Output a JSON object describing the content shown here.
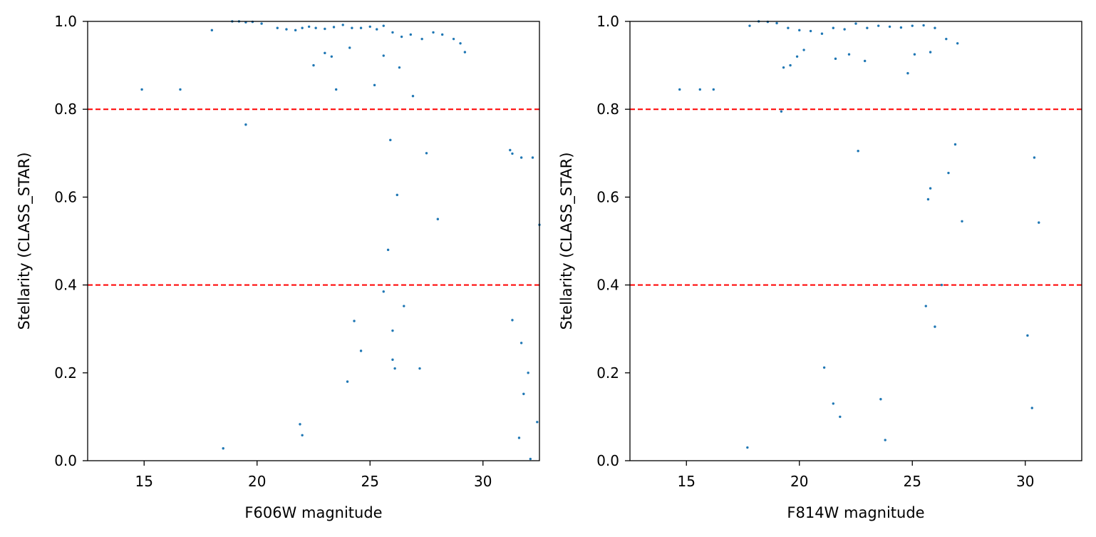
{
  "chart_data": [
    {
      "type": "scatter",
      "xlabel": "F606W magnitude",
      "ylabel": "Stellarity (CLASS_STAR)",
      "xlim": [
        12.5,
        32.5
      ],
      "ylim": [
        0.0,
        1.0
      ],
      "xticks": [
        15,
        20,
        25,
        30
      ],
      "yticks": [
        0.0,
        0.2,
        0.4,
        0.6,
        0.8,
        1.0
      ],
      "xtick_labels": [
        "15",
        "20",
        "25",
        "30"
      ],
      "ytick_labels": [
        "0.0",
        "0.2",
        "0.4",
        "0.6",
        "0.8",
        "1.0"
      ],
      "grid": false,
      "marker_color": "#1f77b4",
      "reference_lines": [
        {
          "orientation": "horizontal",
          "y": 0.8,
          "color": "#ff0000",
          "style": "dashed"
        },
        {
          "orientation": "horizontal",
          "y": 0.4,
          "color": "#ff0000",
          "style": "dashed"
        }
      ],
      "points": [
        [
          14.9,
          0.845
        ],
        [
          16.6,
          0.845
        ],
        [
          18.0,
          0.98
        ],
        [
          18.5,
          0.028
        ],
        [
          19.5,
          0.765
        ],
        [
          18.9,
          1.0
        ],
        [
          19.2,
          1.0
        ],
        [
          19.5,
          0.998
        ],
        [
          19.8,
          0.999
        ],
        [
          20.2,
          0.995
        ],
        [
          20.9,
          0.985
        ],
        [
          21.3,
          0.982
        ],
        [
          21.7,
          0.98
        ],
        [
          22.0,
          0.985
        ],
        [
          22.3,
          0.988
        ],
        [
          22.6,
          0.985
        ],
        [
          23.0,
          0.983
        ],
        [
          23.4,
          0.987
        ],
        [
          23.8,
          0.992
        ],
        [
          24.2,
          0.985
        ],
        [
          24.6,
          0.985
        ],
        [
          25.0,
          0.988
        ],
        [
          25.3,
          0.982
        ],
        [
          25.6,
          0.99
        ],
        [
          26.0,
          0.975
        ],
        [
          26.4,
          0.965
        ],
        [
          26.8,
          0.97
        ],
        [
          27.3,
          0.96
        ],
        [
          27.8,
          0.975
        ],
        [
          28.2,
          0.97
        ],
        [
          28.7,
          0.96
        ],
        [
          29.0,
          0.95
        ],
        [
          29.2,
          0.93
        ],
        [
          23.0,
          0.928
        ],
        [
          23.3,
          0.92
        ],
        [
          22.5,
          0.9
        ],
        [
          24.1,
          0.94
        ],
        [
          25.6,
          0.922
        ],
        [
          26.3,
          0.895
        ],
        [
          23.5,
          0.845
        ],
        [
          25.2,
          0.855
        ],
        [
          26.9,
          0.83
        ],
        [
          21.9,
          0.083
        ],
        [
          22.0,
          0.058
        ],
        [
          24.3,
          0.318
        ],
        [
          24.6,
          0.25
        ],
        [
          24.0,
          0.18
        ],
        [
          25.6,
          0.385
        ],
        [
          25.8,
          0.48
        ],
        [
          25.9,
          0.73
        ],
        [
          26.0,
          0.296
        ],
        [
          26.2,
          0.605
        ],
        [
          26.5,
          0.352
        ],
        [
          26.1,
          0.21
        ],
        [
          26.0,
          0.23
        ],
        [
          27.2,
          0.21
        ],
        [
          27.5,
          0.7
        ],
        [
          28.0,
          0.55
        ],
        [
          31.2,
          0.707
        ],
        [
          31.3,
          0.699
        ],
        [
          31.7,
          0.69
        ],
        [
          32.2,
          0.69
        ],
        [
          32.5,
          0.537
        ],
        [
          31.8,
          0.152
        ],
        [
          32.1,
          0.004
        ],
        [
          32.4,
          0.088
        ],
        [
          31.7,
          0.268
        ],
        [
          32.0,
          0.2
        ],
        [
          31.3,
          0.32
        ],
        [
          31.6,
          0.052
        ]
      ]
    },
    {
      "type": "scatter",
      "xlabel": "F814W magnitude",
      "ylabel": "Stellarity (CLASS_STAR)",
      "xlim": [
        12.5,
        32.5
      ],
      "ylim": [
        0.0,
        1.0
      ],
      "xticks": [
        15,
        20,
        25,
        30
      ],
      "yticks": [
        0.0,
        0.2,
        0.4,
        0.6,
        0.8,
        1.0
      ],
      "xtick_labels": [
        "15",
        "20",
        "25",
        "30"
      ],
      "ytick_labels": [
        "0.0",
        "0.2",
        "0.4",
        "0.6",
        "0.8",
        "1.0"
      ],
      "grid": false,
      "marker_color": "#1f77b4",
      "reference_lines": [
        {
          "orientation": "horizontal",
          "y": 0.8,
          "color": "#ff0000",
          "style": "dashed"
        },
        {
          "orientation": "horizontal",
          "y": 0.4,
          "color": "#ff0000",
          "style": "dashed"
        }
      ],
      "points": [
        [
          14.7,
          0.845
        ],
        [
          15.6,
          0.845
        ],
        [
          16.2,
          0.845
        ],
        [
          17.7,
          0.03
        ],
        [
          19.2,
          0.795
        ],
        [
          19.3,
          0.895
        ],
        [
          19.6,
          0.9
        ],
        [
          19.9,
          0.92
        ],
        [
          20.2,
          0.935
        ],
        [
          17.8,
          0.99
        ],
        [
          18.2,
          1.0
        ],
        [
          18.6,
          0.999
        ],
        [
          19.0,
          0.996
        ],
        [
          19.5,
          0.985
        ],
        [
          20.0,
          0.98
        ],
        [
          20.5,
          0.978
        ],
        [
          21.0,
          0.972
        ],
        [
          21.5,
          0.985
        ],
        [
          22.0,
          0.982
        ],
        [
          22.5,
          0.995
        ],
        [
          23.0,
          0.985
        ],
        [
          23.5,
          0.99
        ],
        [
          24.0,
          0.988
        ],
        [
          24.5,
          0.986
        ],
        [
          25.0,
          0.99
        ],
        [
          25.5,
          0.991
        ],
        [
          26.0,
          0.985
        ],
        [
          26.5,
          0.96
        ],
        [
          27.0,
          0.95
        ],
        [
          21.6,
          0.915
        ],
        [
          22.2,
          0.925
        ],
        [
          22.9,
          0.91
        ],
        [
          24.8,
          0.882
        ],
        [
          25.1,
          0.925
        ],
        [
          25.8,
          0.93
        ],
        [
          22.6,
          0.705
        ],
        [
          21.1,
          0.212
        ],
        [
          21.5,
          0.13
        ],
        [
          21.8,
          0.1
        ],
        [
          23.6,
          0.14
        ],
        [
          23.8,
          0.047
        ],
        [
          25.6,
          0.352
        ],
        [
          25.8,
          0.62
        ],
        [
          25.7,
          0.595
        ],
        [
          26.0,
          0.305
        ],
        [
          26.3,
          0.4
        ],
        [
          26.6,
          0.655
        ],
        [
          26.9,
          0.72
        ],
        [
          27.2,
          0.545
        ],
        [
          30.6,
          0.542
        ],
        [
          30.4,
          0.69
        ],
        [
          30.1,
          0.285
        ],
        [
          30.3,
          0.12
        ]
      ]
    }
  ]
}
